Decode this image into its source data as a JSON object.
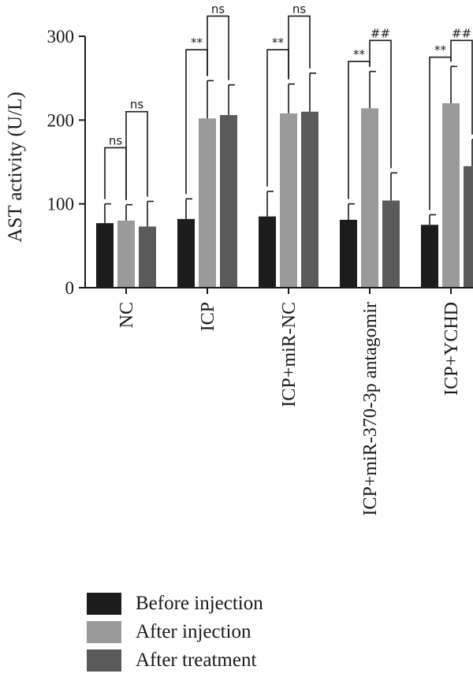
{
  "chart_data": {
    "type": "bar",
    "title": "",
    "xlabel": "",
    "ylabel": "AST activity (U/L)",
    "ylim": [
      0,
      300
    ],
    "yticks": [
      0,
      100,
      200,
      300
    ],
    "grid": false,
    "legend_position": "bottom-left",
    "categories": [
      "NC",
      "ICP",
      "ICP+miR-NC",
      "ICP+miR-370-3p antagomir",
      "ICP+YCHD"
    ],
    "series": [
      {
        "name": "Before injection",
        "color": "#1c1c1c",
        "values": [
          77,
          82,
          85,
          81,
          75
        ],
        "errors": [
          23,
          24,
          30,
          19,
          12
        ]
      },
      {
        "name": "After injection",
        "color": "#9a9a9a",
        "values": [
          80,
          202,
          208,
          214,
          220
        ],
        "errors": [
          19,
          45,
          35,
          44,
          44
        ]
      },
      {
        "name": "After treatment",
        "color": "#5a5a5a",
        "values": [
          73,
          206,
          210,
          104,
          145
        ],
        "errors": [
          30,
          36,
          46,
          33,
          32
        ]
      }
    ],
    "annotations": [
      {
        "category": 0,
        "from": 0,
        "to": 1,
        "label": "ns",
        "y": 167
      },
      {
        "category": 0,
        "from": 1,
        "to": 2,
        "label": "ns",
        "y": 210
      },
      {
        "category": 1,
        "from": 0,
        "to": 1,
        "label": "**",
        "y": 284
      },
      {
        "category": 1,
        "from": 1,
        "to": 2,
        "label": "ns",
        "y": 324
      },
      {
        "category": 2,
        "from": 0,
        "to": 1,
        "label": "**",
        "y": 284
      },
      {
        "category": 2,
        "from": 1,
        "to": 2,
        "label": "ns",
        "y": 324
      },
      {
        "category": 3,
        "from": 0,
        "to": 1,
        "label": "**",
        "y": 270
      },
      {
        "category": 3,
        "from": 1,
        "to": 2,
        "label": "##",
        "y": 295
      },
      {
        "category": 4,
        "from": 0,
        "to": 1,
        "label": "**",
        "y": 275
      },
      {
        "category": 4,
        "from": 1,
        "to": 2,
        "label": "##",
        "y": 295
      }
    ]
  }
}
